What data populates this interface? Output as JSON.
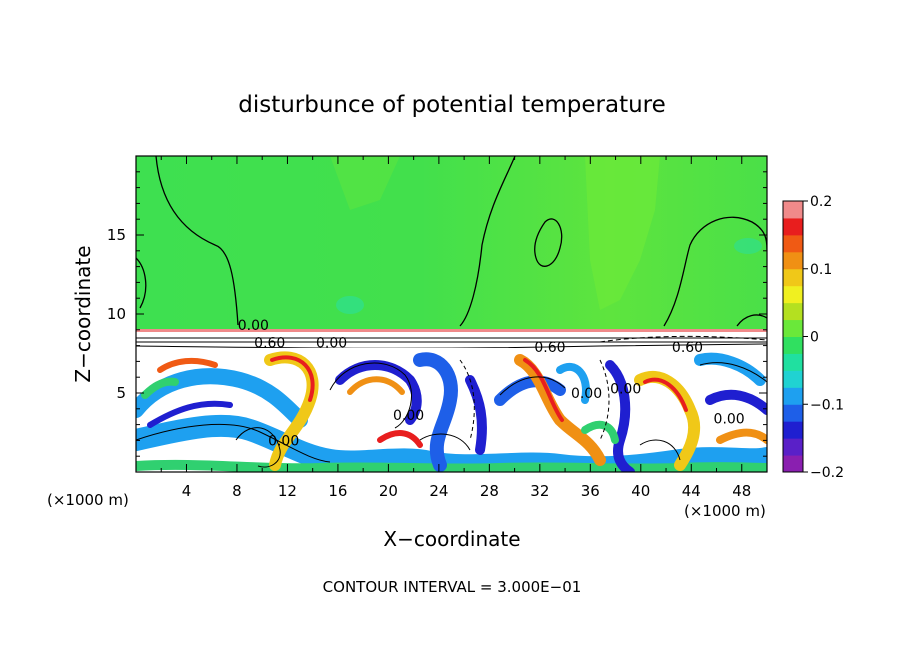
{
  "chart_data": {
    "type": "heatmap",
    "title": "disturbunce of potential temperature",
    "xlabel": "X−coordinate",
    "ylabel": "Z−coordinate",
    "x_unit_left": "(×1000 m)",
    "x_unit_right": "(×1000 m)",
    "footer": "CONTOUR INTERVAL = 3.000E−01",
    "xlim": [
      0,
      50
    ],
    "ylim": [
      0,
      20
    ],
    "x_ticks": [
      4,
      8,
      12,
      16,
      20,
      24,
      28,
      32,
      36,
      40,
      44,
      48
    ],
    "y_ticks": [
      5,
      10,
      15
    ],
    "colorbar": {
      "range": [
        -0.2,
        0.2
      ],
      "tick_values": [
        0.2,
        0.1,
        0,
        -0.1,
        -0.2
      ],
      "tick_labels": [
        "0.2",
        "0.1",
        "0",
        "−0.1",
        "−0.2"
      ],
      "colors": [
        "#8a1fb0",
        "#5a20c8",
        "#1f1fd0",
        "#1e5fe8",
        "#1ea0f0",
        "#20d2d2",
        "#20e0a0",
        "#30e060",
        "#6ae83a",
        "#b4e020",
        "#f0f020",
        "#f0c818",
        "#f09014",
        "#f05a14",
        "#e81e1e",
        "#f08a8a"
      ]
    },
    "contour_labels": [
      {
        "text": "0.00",
        "x": 9.3,
        "z": 9.3
      },
      {
        "text": "0.60",
        "x": 10.6,
        "z": 8.2
      },
      {
        "text": "0.00",
        "x": 15.5,
        "z": 8.2
      },
      {
        "text": "0.60",
        "x": 32.8,
        "z": 7.9
      },
      {
        "text": "0.60",
        "x": 43.7,
        "z": 7.9
      },
      {
        "text": "0.00",
        "x": 35.7,
        "z": 5.0
      },
      {
        "text": "0.00",
        "x": 38.8,
        "z": 5.3
      },
      {
        "text": "0.00",
        "x": 11.7,
        "z": 2.0
      },
      {
        "text": "0.00",
        "x": 21.6,
        "z": 3.6
      },
      {
        "text": "0.00",
        "x": 47.0,
        "z": 3.4
      }
    ]
  }
}
